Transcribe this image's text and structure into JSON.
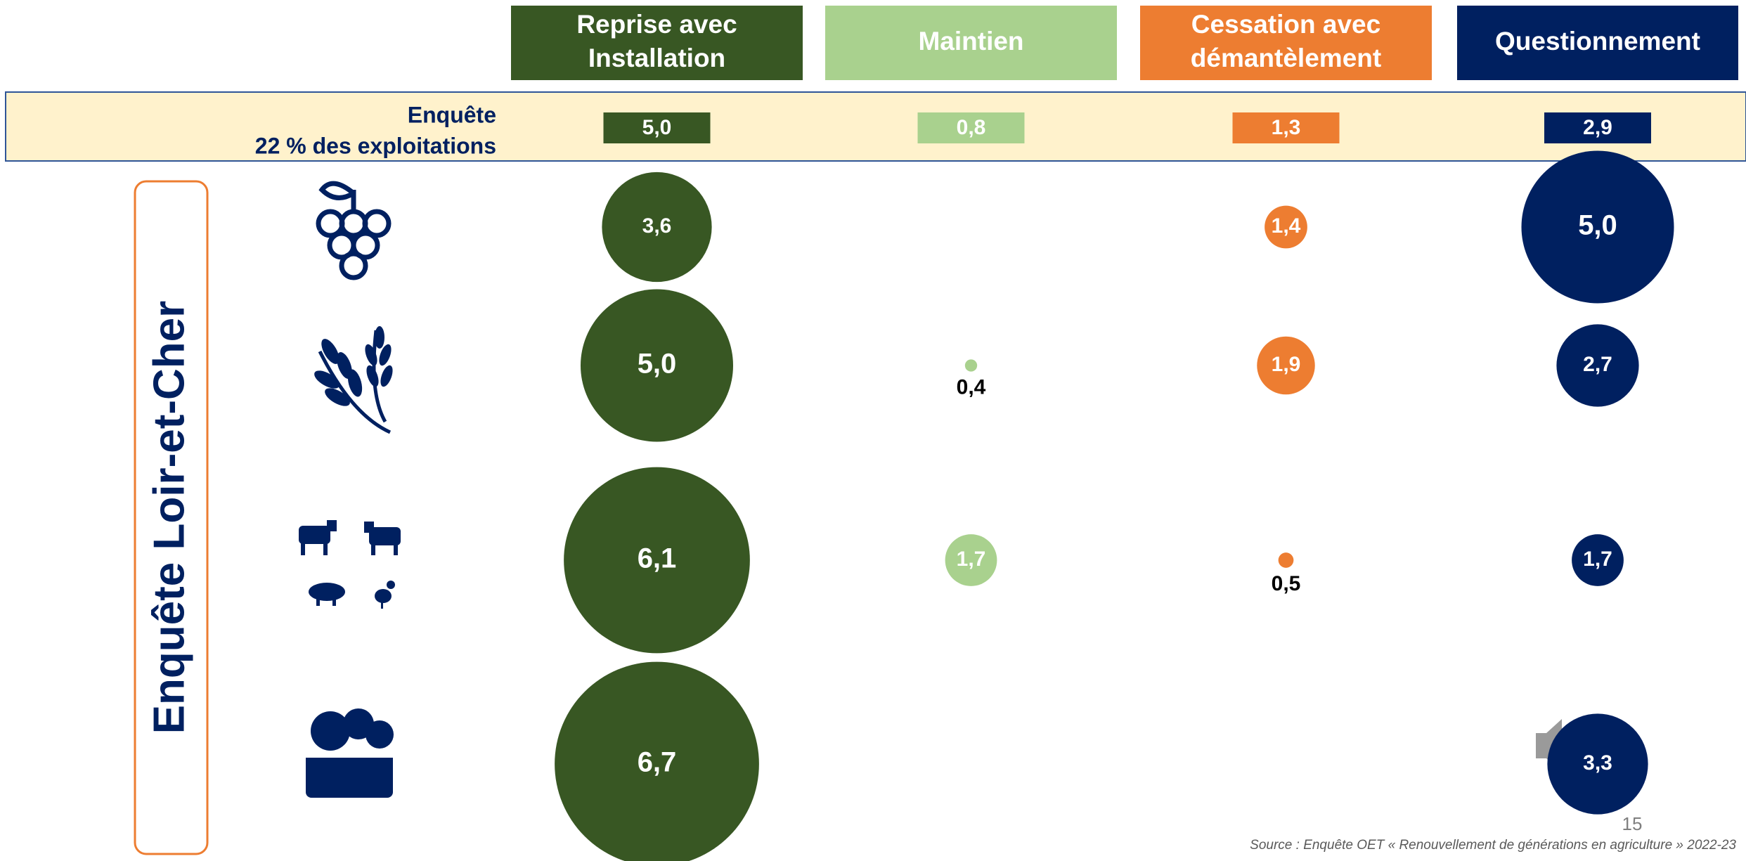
{
  "chart_data": {
    "type": "bubble-grid",
    "title": "Enquête Loir-et-Cher",
    "columns": [
      [
        "Reprise avec",
        "Installation"
      ],
      [
        "Maintien"
      ],
      [
        "Cessation avec",
        "démantèlement"
      ],
      [
        "Questionnement"
      ]
    ],
    "colors": [
      "#385723",
      "#a9d18e",
      "#ed7d31",
      "#002060"
    ],
    "summary": {
      "label": [
        "Enquête",
        "22 % des exploitations"
      ],
      "values": [
        5.0,
        0.8,
        1.3,
        2.9
      ],
      "value_labels": [
        "5,0",
        "0,8",
        "1,3",
        "2,9"
      ]
    },
    "rows": [
      {
        "values": [
          3.6,
          null,
          1.4,
          5.0
        ],
        "value_labels": [
          "3,6",
          null,
          "1,4",
          "5,0"
        ]
      },
      {
        "values": [
          5.0,
          0.4,
          1.9,
          2.7
        ],
        "value_labels": [
          "5,0",
          "0,4",
          "1,9",
          "2,7"
        ]
      },
      {
        "values": [
          6.1,
          1.7,
          0.5,
          1.7
        ],
        "value_labels": [
          "6,1",
          "1,7",
          "0,5",
          "1,7"
        ]
      },
      {
        "values": [
          6.7,
          null,
          null,
          3.3
        ],
        "value_labels": [
          "6,7",
          null,
          null,
          "3,3"
        ]
      }
    ],
    "source": "Source : Enquête OET « Renouvellement de générations en agriculture » 2022-23",
    "page_number": "15"
  }
}
